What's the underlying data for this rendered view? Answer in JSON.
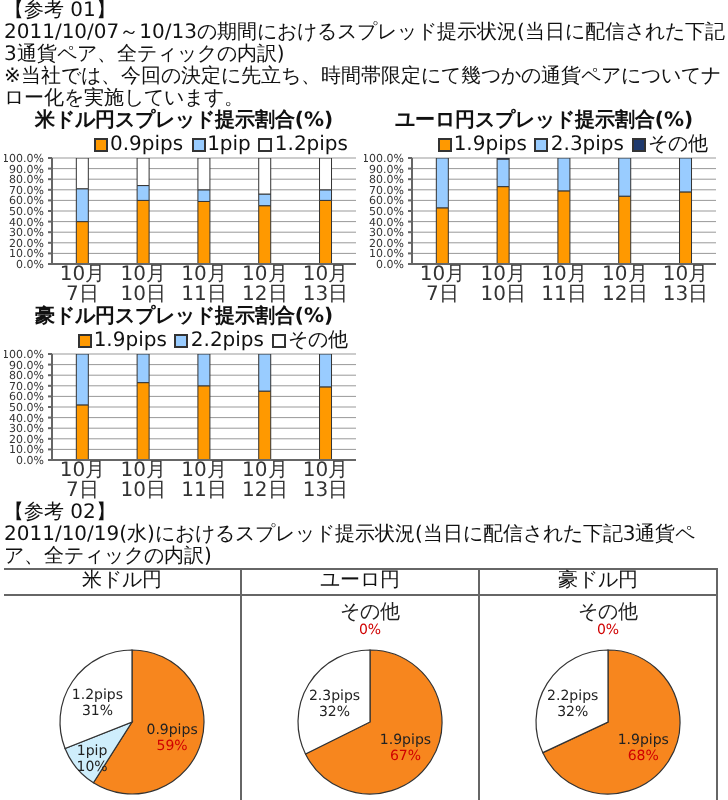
{
  "chart_data": [
    {
      "type": "bar",
      "stacked": true,
      "title": "米ドル円スプレッド提示割合(%)",
      "annotations": [
        "【参考 01】",
        "2011/10/07～10/13の期間におけるスプレッド提示状況(当日に配信された下記3通貨ペア、全ティックの内訳)",
        "※当社では、今回の決定に先立ち、時間帯限定にて幾つかの通貨ペアについてナロー化を実施しています。"
      ],
      "categories": [
        "10月7日",
        "10月10日",
        "10月11日",
        "10月12日",
        "10月13日"
      ],
      "ylim": [
        0,
        100
      ],
      "yticks": [
        {
          "value": 0,
          "label": "0.0%"
        },
        {
          "value": 10,
          "label": "10.0%"
        },
        {
          "value": 20,
          "label": "20.0%"
        },
        {
          "value": 30,
          "label": "30.0%"
        },
        {
          "value": 40,
          "label": "40.0%"
        },
        {
          "value": 50,
          "label": "50.0%"
        },
        {
          "value": 60,
          "label": "60.0%"
        },
        {
          "value": 70,
          "label": "70.0%"
        },
        {
          "value": 80,
          "label": "80.0%"
        },
        {
          "value": 90,
          "label": "90.0%"
        },
        {
          "value": 100,
          "label": "100.0%"
        }
      ],
      "grid": "y",
      "legend": "top right",
      "series": [
        {
          "name": "0.9pips",
          "color": "#ff9900",
          "values": [
            40,
            60,
            59,
            55,
            60
          ]
        },
        {
          "name": "1pip",
          "color": "#99ccff",
          "values": [
            31,
            14,
            11,
            11,
            10
          ]
        },
        {
          "name": "1.2pips",
          "color": "#ffffff",
          "values": [
            29,
            26,
            30,
            34,
            30
          ]
        }
      ]
    },
    {
      "type": "bar",
      "stacked": true,
      "title": "ユーロ円スプレッド提示割合(%)",
      "categories": [
        "10月7日",
        "10月10日",
        "10月11日",
        "10月12日",
        "10月13日"
      ],
      "ylim": [
        0,
        100
      ],
      "yticks": [
        {
          "value": 0,
          "label": "0.0%"
        },
        {
          "value": 10,
          "label": "10.0%"
        },
        {
          "value": 20,
          "label": "20.0%"
        },
        {
          "value": 30,
          "label": "30.0%"
        },
        {
          "value": 40,
          "label": "40.0%"
        },
        {
          "value": 50,
          "label": "50.0%"
        },
        {
          "value": 60,
          "label": "60.0%"
        },
        {
          "value": 70,
          "label": "70.0%"
        },
        {
          "value": 80,
          "label": "80.0%"
        },
        {
          "value": 90,
          "label": "90.0%"
        },
        {
          "value": 100,
          "label": "100.0%"
        }
      ],
      "grid": "y",
      "legend": "top right",
      "series": [
        {
          "name": "1.9pips",
          "color": "#ff9900",
          "values": [
            53,
            73,
            69,
            64,
            68
          ]
        },
        {
          "name": "2.3pips",
          "color": "#99ccff",
          "values": [
            47,
            26,
            31,
            36,
            32
          ]
        },
        {
          "name": "その他",
          "color": "#1f3a6e",
          "values": [
            0,
            1,
            0,
            0,
            0
          ]
        }
      ]
    },
    {
      "type": "bar",
      "stacked": true,
      "title": "豪ドル円スプレッド提示割合(%)",
      "categories": [
        "10月7日",
        "10月10日",
        "10月11日",
        "10月12日",
        "10月13日"
      ],
      "ylim": [
        0,
        100
      ],
      "yticks": [
        {
          "value": 0,
          "label": "0.0%"
        },
        {
          "value": 10,
          "label": "10.0%"
        },
        {
          "value": 20,
          "label": "20.0%"
        },
        {
          "value": 30,
          "label": "30.0%"
        },
        {
          "value": 40,
          "label": "40.0%"
        },
        {
          "value": 50,
          "label": "50.0%"
        },
        {
          "value": 60,
          "label": "60.0%"
        },
        {
          "value": 70,
          "label": "70.0%"
        },
        {
          "value": 80,
          "label": "80.0%"
        },
        {
          "value": 90,
          "label": "90.0%"
        },
        {
          "value": 100,
          "label": "100.0%"
        }
      ],
      "grid": "y",
      "legend": "top right",
      "series": [
        {
          "name": "1.9pips",
          "color": "#ff9900",
          "values": [
            52,
            73,
            70,
            65,
            69
          ]
        },
        {
          "name": "2.2pips",
          "color": "#99ccff",
          "values": [
            48,
            27,
            30,
            35,
            31
          ]
        },
        {
          "name": "その他",
          "color": "#ffffff",
          "values": [
            0,
            0,
            0,
            0,
            0
          ]
        }
      ]
    },
    {
      "type": "pie",
      "title": "米ドル円",
      "annotations": [
        "【参考 02】",
        "2011/10/19(水)におけるスプレッド提示状況(当日に配信された下記3通貨ペア、全ティックの内訳)"
      ],
      "categories": [
        "0.9pips",
        "1pip",
        "1.2pips"
      ],
      "values": [
        59,
        10,
        31
      ],
      "colors": [
        "#f7861e",
        "#cfeefc",
        "#ffffff"
      ],
      "value_labels": [
        "59%",
        "10%",
        "31%"
      ]
    },
    {
      "type": "pie",
      "title": "ユーロ円",
      "categories": [
        "その他",
        "1.9pips",
        "2.3pips"
      ],
      "values": [
        0,
        67,
        32
      ],
      "colors": [
        "#1f3a6e",
        "#f7861e",
        "#ffffff"
      ],
      "value_labels": [
        "0%",
        "67%",
        "32%"
      ]
    },
    {
      "type": "pie",
      "title": "豪ドル円",
      "categories": [
        "その他",
        "1.9pips",
        "2.2pips"
      ],
      "values": [
        0,
        68,
        32
      ],
      "colors": [
        "#1f3a6e",
        "#f7861e",
        "#ffffff"
      ],
      "value_labels": [
        "0%",
        "68%",
        "32%"
      ]
    }
  ]
}
